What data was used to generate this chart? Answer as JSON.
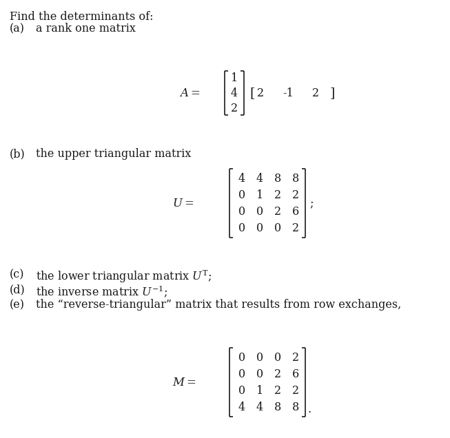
{
  "title_text": "Find the determinants of:",
  "background_color": "#ffffff",
  "text_color": "#1a1a1a",
  "items_a_label": "(a)",
  "items_a_desc": "a rank one matrix",
  "items_b_label": "(b)",
  "items_b_desc": "the upper triangular matrix",
  "items_c_label": "(c)",
  "items_c_desc": "the lower triangular matrix $U^{\\mathrm{T}}$;",
  "items_d_label": "(d)",
  "items_d_desc": "the inverse matrix $U^{-1}$;",
  "items_e_label": "(e)",
  "items_e_desc": "the “reverse-triangular” matrix that results from row exchanges,",
  "A_col_vec": [
    1,
    4,
    2
  ],
  "A_row_vec": [
    2,
    -1,
    2
  ],
  "U_matrix": [
    [
      4,
      4,
      8,
      8
    ],
    [
      0,
      1,
      2,
      2
    ],
    [
      0,
      0,
      2,
      6
    ],
    [
      0,
      0,
      0,
      2
    ]
  ],
  "M_matrix": [
    [
      0,
      0,
      0,
      2
    ],
    [
      0,
      0,
      2,
      6
    ],
    [
      0,
      1,
      2,
      2
    ],
    [
      4,
      4,
      8,
      8
    ]
  ],
  "fs": 11.5,
  "fs_math": 12
}
